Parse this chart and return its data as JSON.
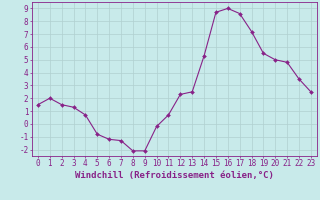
{
  "x": [
    0,
    1,
    2,
    3,
    4,
    5,
    6,
    7,
    8,
    9,
    10,
    11,
    12,
    13,
    14,
    15,
    16,
    17,
    18,
    19,
    20,
    21,
    22,
    23
  ],
  "y": [
    1.5,
    2.0,
    1.5,
    1.3,
    0.7,
    -0.8,
    -1.2,
    -1.3,
    -2.1,
    -2.1,
    -0.2,
    0.7,
    2.3,
    2.5,
    5.3,
    8.7,
    9.0,
    8.6,
    7.2,
    5.5,
    5.0,
    4.8,
    3.5,
    2.5
  ],
  "line_color": "#882288",
  "marker_color": "#882288",
  "bg_color": "#c8eaea",
  "grid_color": "#b0d0d0",
  "xlabel": "Windchill (Refroidissement éolien,°C)",
  "xlim": [
    -0.5,
    23.5
  ],
  "ylim": [
    -2.5,
    9.5
  ],
  "yticks": [
    -2,
    -1,
    0,
    1,
    2,
    3,
    4,
    5,
    6,
    7,
    8,
    9
  ],
  "xticks": [
    0,
    1,
    2,
    3,
    4,
    5,
    6,
    7,
    8,
    9,
    10,
    11,
    12,
    13,
    14,
    15,
    16,
    17,
    18,
    19,
    20,
    21,
    22,
    23
  ],
  "tick_color": "#882288",
  "label_fontsize": 6.5,
  "tick_fontsize": 5.5,
  "fig_width": 3.2,
  "fig_height": 2.0,
  "dpi": 100
}
